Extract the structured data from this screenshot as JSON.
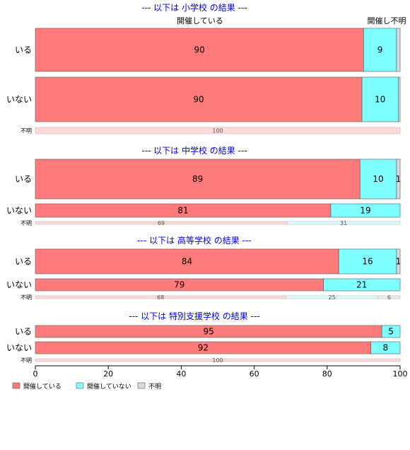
{
  "chart_data": {
    "type": "bar",
    "orientation": "horizontal-stacked-100",
    "xlim": [
      0,
      100
    ],
    "x_ticks": [
      0,
      20,
      40,
      60,
      80,
      100
    ],
    "colors": {
      "開催している": "#ff7a7a",
      "開催していない": "#7fffff",
      "不明": "#d9d9d9"
    },
    "legend": {
      "position": "bottom-left",
      "entries": [
        "開催している",
        "開催していない",
        "不明"
      ]
    },
    "panels": [
      {
        "title": "--- 以下は 小学校 の結果 ---",
        "column_labels": [
          "開催している",
          "開催していない",
          "不明"
        ],
        "column_header_text": [
          "開催している",
          "開催し不明"
        ],
        "rows": [
          {
            "label": "いる",
            "values": [
              90,
              9,
              1
            ],
            "shown_labels": [
              "90",
              "9",
              ""
            ]
          },
          {
            "label": "いない",
            "values": [
              90,
              10,
              0.5
            ],
            "shown_labels": [
              "90",
              "10",
              ""
            ]
          },
          {
            "label": "不明",
            "values": [
              100,
              0,
              0
            ],
            "shown_labels": [
              "100",
              "",
              ""
            ]
          }
        ]
      },
      {
        "title": "--- 以下は 中学校 の結果 ---",
        "rows": [
          {
            "label": "いる",
            "values": [
              89,
              10,
              1
            ],
            "shown_labels": [
              "89",
              "10",
              "1"
            ]
          },
          {
            "label": "いない",
            "values": [
              81,
              19,
              0
            ],
            "shown_labels": [
              "81",
              "19",
              ""
            ]
          },
          {
            "label": "不明",
            "values": [
              69,
              31,
              0
            ],
            "shown_labels": [
              "69",
              "31",
              ""
            ]
          }
        ]
      },
      {
        "title": "--- 以下は 高等学校 の結果 ---",
        "rows": [
          {
            "label": "いる",
            "values": [
              84,
              16,
              1
            ],
            "shown_labels": [
              "84",
              "16",
              "1"
            ]
          },
          {
            "label": "いない",
            "values": [
              79,
              21,
              0
            ],
            "shown_labels": [
              "79",
              "21",
              ""
            ]
          },
          {
            "label": "不明",
            "values": [
              68,
              25,
              6
            ],
            "shown_labels": [
              "68",
              "25",
              "6"
            ]
          }
        ]
      },
      {
        "title": "--- 以下は 特別支援学校 の結果 ---",
        "rows": [
          {
            "label": "いる",
            "values": [
              95,
              5,
              0
            ],
            "shown_labels": [
              "95",
              "5",
              ""
            ]
          },
          {
            "label": "いない",
            "values": [
              92,
              8,
              0
            ],
            "shown_labels": [
              "92",
              "8",
              ""
            ]
          },
          {
            "label": "不明",
            "values": [
              100,
              0,
              0
            ],
            "shown_labels": [
              "100",
              "",
              ""
            ]
          }
        ]
      }
    ]
  }
}
